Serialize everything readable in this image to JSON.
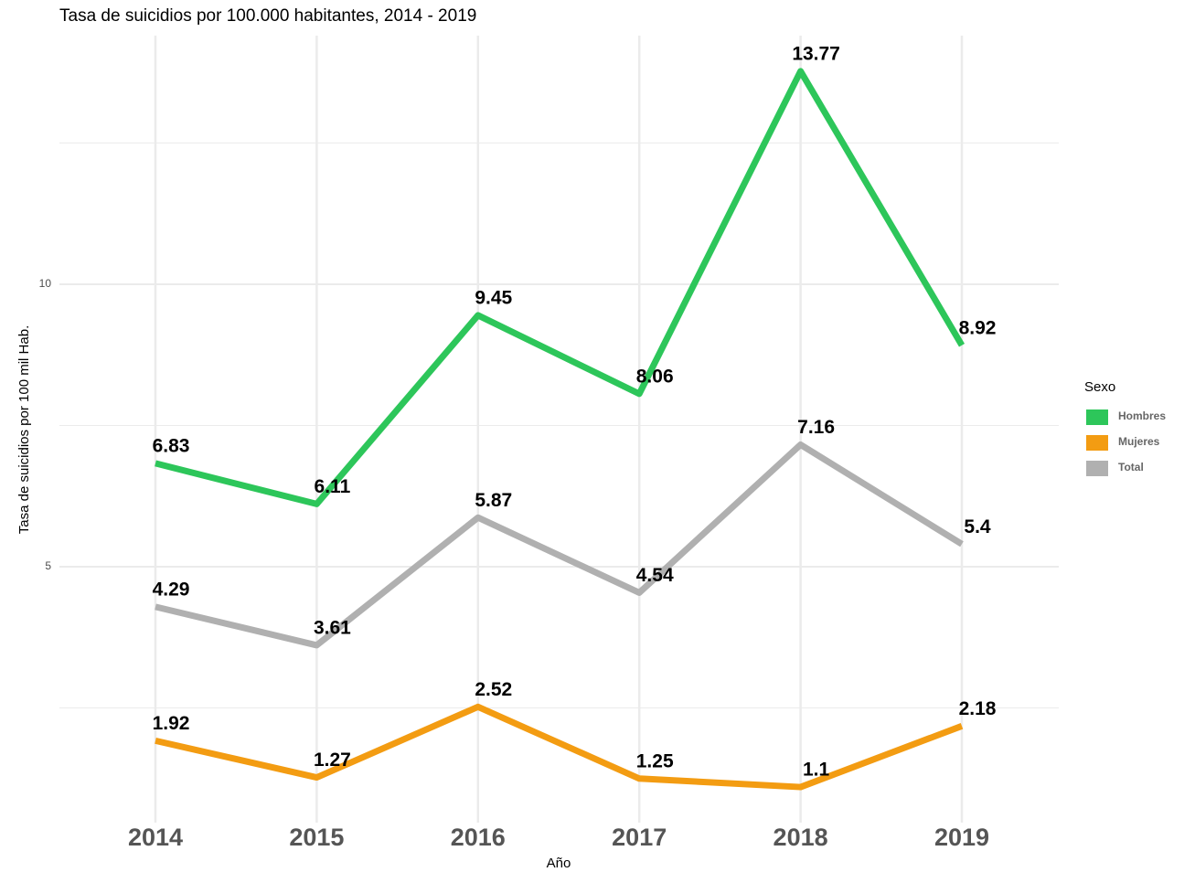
{
  "chart_data": {
    "type": "line",
    "title": "Tasa de suicidios por 100.000 habitantes, 2014 - 2019",
    "x_label": "Año",
    "y_label": "Tasa de suicidios por 100 mil Hab.",
    "legend_title": "Sexo",
    "legend_position": "right",
    "categories": [
      "2014",
      "2015",
      "2016",
      "2017",
      "2018",
      "2019"
    ],
    "series": [
      {
        "name": "Hombres",
        "color": "#2dc65a",
        "values": [
          6.83,
          6.11,
          9.45,
          8.06,
          13.77,
          8.92
        ]
      },
      {
        "name": "Mujeres",
        "color": "#f39c12",
        "values": [
          1.92,
          1.27,
          2.52,
          1.25,
          1.1,
          2.18
        ]
      },
      {
        "name": "Total",
        "color": "#b0b0b0",
        "values": [
          4.29,
          3.61,
          5.87,
          4.54,
          7.16,
          5.4
        ]
      }
    ],
    "ylim": [
      0.47,
      14.4
    ],
    "yticks": [
      5,
      10
    ],
    "minor_yticks": [
      2.5,
      7.5,
      12.5
    ],
    "grid": true
  }
}
